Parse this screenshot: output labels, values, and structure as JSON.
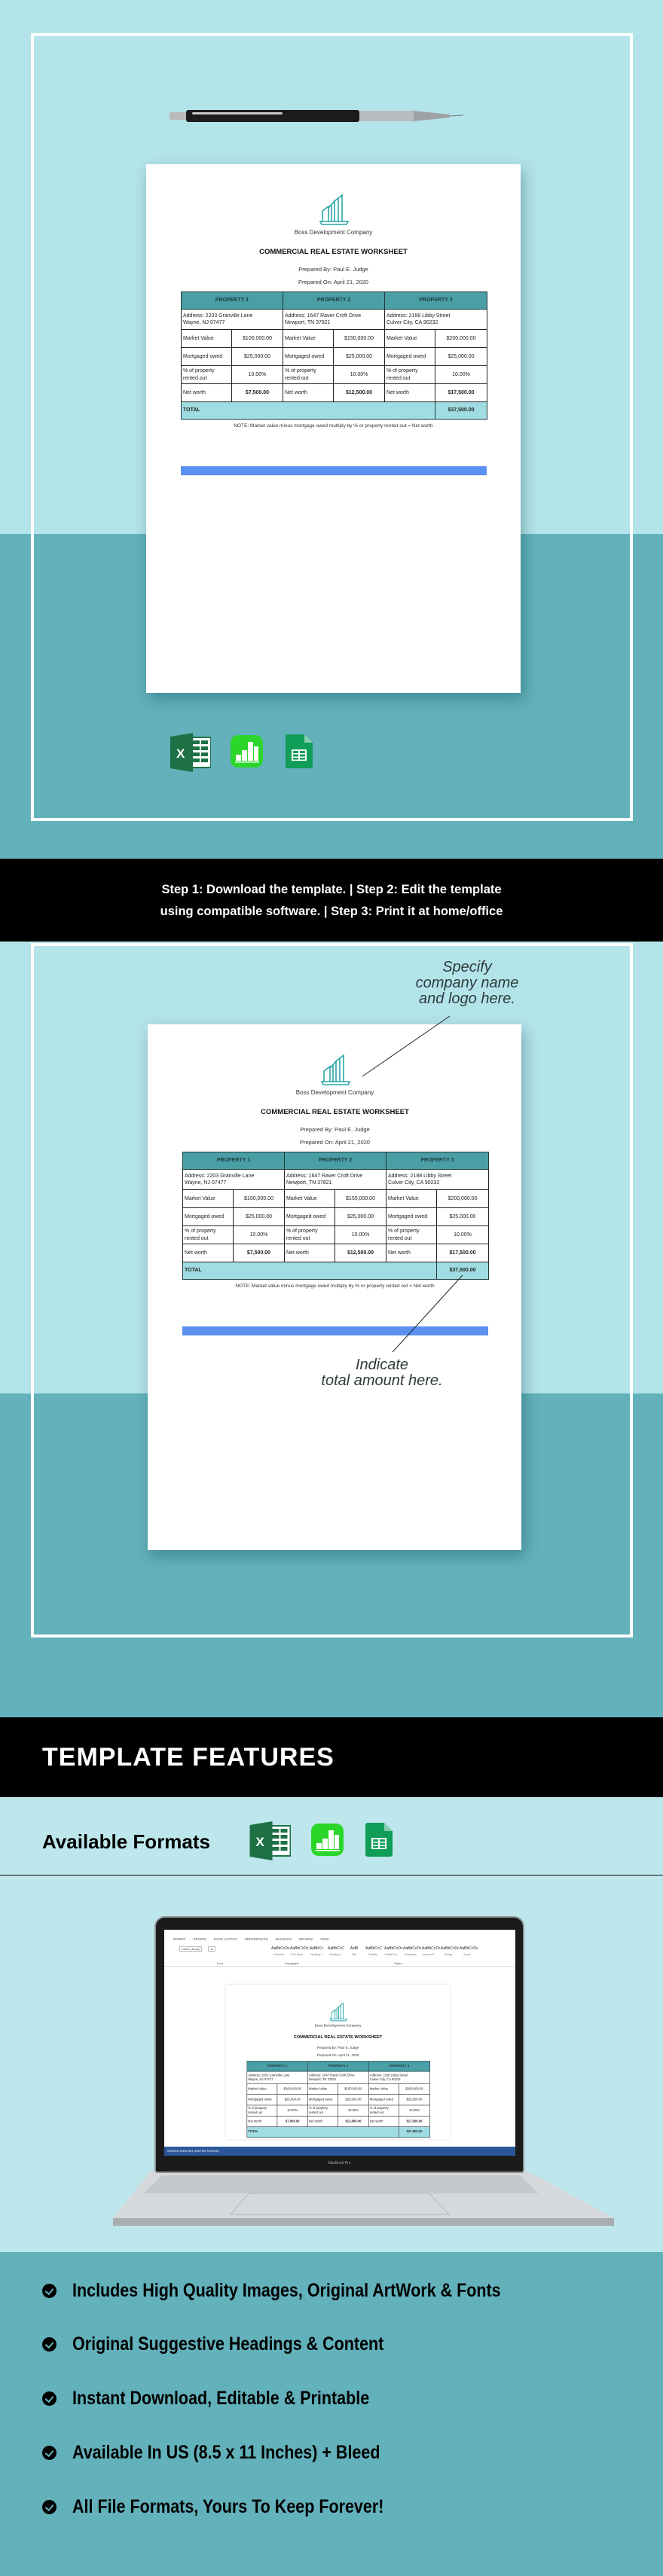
{
  "colors": {
    "light_bg": "#b3e4e9",
    "teal_bg": "#62b1bb",
    "formats_bg": "#bde7ec",
    "table_header": "#4a9ea5",
    "table_total": "#a0dde3",
    "blue_bar": "#5b8ff0",
    "logo": "#2aa5a8"
  },
  "doc": {
    "company_name": "Boss Development Company",
    "title": "COMMERCIAL REAL ESTATE WORKSHEET",
    "prepared_by": "Prepared By: Paul E. Judge",
    "prepared_on": "Prepared On: April 21, 2020",
    "labels": {
      "market_value": "Market Value",
      "mortgaged_owed": "Mortgaged owed",
      "percent_rented": "% of property rented out",
      "net_worth": "Net worth",
      "total": "TOTAL"
    },
    "properties": [
      {
        "header": "PROPERTY 1",
        "address_line1": "Address: 2203 Granville Lane",
        "address_line2": "Wayne, NJ 07477",
        "market_value": "$100,000.00",
        "mortgaged_owed": "$25,000.00",
        "percent_rented": "10.00%",
        "net_worth": "$7,500.00"
      },
      {
        "header": "PROPERTY 2",
        "address_line1": "Address: 1647 Raver Croft Drive",
        "address_line2": "Newport, TN 37821",
        "market_value": "$150,000.00",
        "mortgaged_owed": "$25,000.00",
        "percent_rented": "10.00%",
        "net_worth": "$12,500.00"
      },
      {
        "header": "PROPERTY 3",
        "address_line1": "Address: 2188 Libby Street",
        "address_line2": "Culver City, CA 90232",
        "market_value": "$200,000.00",
        "mortgaged_owed": "$25,000.00",
        "percent_rented": "10.00%",
        "net_worth": "$17,500.00"
      }
    ],
    "total": "$37,500.00",
    "note": "NOTE: Market value minus mortgage owed multiply by % or property rented out = Net worth"
  },
  "format_icons": [
    "excel-icon",
    "numbers-icon",
    "google-sheets-icon"
  ],
  "steps": {
    "line1": "Step 1: Download the template.    |   Step 2: Edit the template",
    "line2": "using compatible software.   |    Step 3: Print it at home/office"
  },
  "annotations": {
    "company": [
      "Specify",
      "company name",
      "and logo here."
    ],
    "total": [
      "Indicate",
      "total amount here."
    ]
  },
  "features": {
    "heading": "TEMPLATE FEATURES",
    "formats_label": "Available Formats",
    "items": [
      "Includes High Quality Images, Original ArtWork & Fonts",
      "Original Suggestive Headings & Content",
      "Instant Download, Editable & Printable",
      "Available In US (8.5 x 11 Inches) + Bleed",
      "All File Formats, Yours To Keep Forever!"
    ]
  },
  "laptop": {
    "brand": "MacBook Pro",
    "ribbon_tabs": [
      "INSERT",
      "DESIGN",
      "PAGE LAYOUT",
      "REFERENCES",
      "MAILINGS",
      "REVIEW",
      "VIEW"
    ],
    "font_box": "Calibri (Body)",
    "font_size": "11",
    "groups": [
      "Font",
      "Paragraph",
      "Styles"
    ],
    "styles": [
      {
        "preview": "AaBbCcDc",
        "label": "¶ Normal"
      },
      {
        "preview": "AaBbCcDc",
        "label": "¶ No Spac..."
      },
      {
        "preview": "AaBbCc",
        "label": "Heading 1"
      },
      {
        "preview": "AaBbCcC",
        "label": "Heading 2"
      },
      {
        "preview": "AaBl",
        "label": "Title"
      },
      {
        "preview": "AaBbCcC",
        "label": "Subtitle"
      },
      {
        "preview": "AaBbCcDc",
        "label": "Subtle Em..."
      },
      {
        "preview": "AaBbCcDc",
        "label": "Emphasis"
      },
      {
        "preview": "AaBbCcDc",
        "label": "Intense E..."
      },
      {
        "preview": "AaBbCcDc",
        "label": "Strong"
      },
      {
        "preview": "AaBbCcDc",
        "label": "Quote"
      }
    ],
    "status": "WORDS    ENGLISH (UNITED STATES)"
  }
}
